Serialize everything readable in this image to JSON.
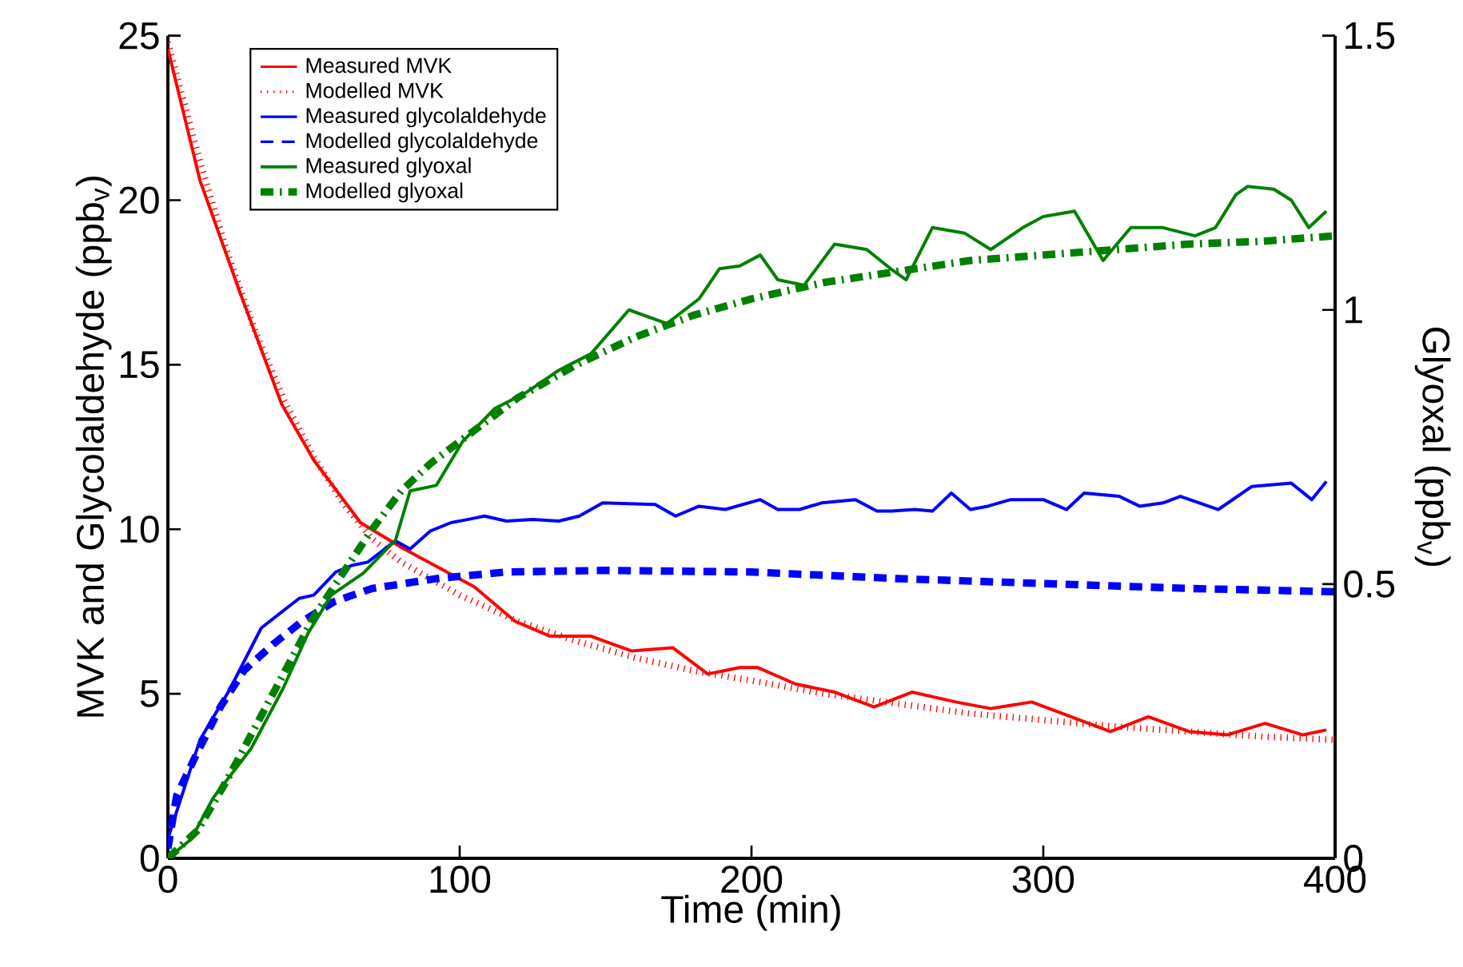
{
  "chart_data": {
    "type": "line",
    "xlabel": "Time (min)",
    "ylabel": "MVK and Glycolaldehyde (ppb$_{v}$)",
    "y2label": "Glyoxal (ppb$_{v}$)",
    "xlim": [
      0,
      400
    ],
    "xticks": [
      0,
      100,
      200,
      300,
      400
    ],
    "ylim": [
      0,
      25
    ],
    "yticks": [
      0,
      5,
      10,
      15,
      20,
      25
    ],
    "y2lim": [
      0,
      1.5
    ],
    "y2ticks": [
      0,
      0.5,
      1,
      1.5
    ],
    "legend": "top left",
    "grid": false,
    "marker": "none",
    "series": [
      {
        "name": "Measured MVK",
        "color": "#ff0000",
        "line_style": "solid",
        "x": [
          0,
          11,
          24.7,
          39,
          50,
          66,
          81,
          105,
          119,
          131,
          145,
          159,
          173,
          185,
          196,
          202,
          215,
          228.5,
          242,
          255,
          270,
          282,
          296,
          323,
          336,
          350,
          363,
          376,
          389,
          397
        ],
        "values": [
          24.6,
          20.6,
          17.2,
          13.8,
          12.1,
          10.2,
          9.4,
          8.25,
          7.2,
          6.75,
          6.75,
          6.3,
          6.4,
          5.6,
          5.8,
          5.8,
          5.3,
          5.05,
          4.6,
          5.05,
          4.75,
          4.55,
          4.75,
          3.85,
          4.3,
          3.85,
          3.75,
          4.1,
          3.75,
          3.9
        ]
      },
      {
        "name": "Modelled MVK",
        "color": "#ff0000",
        "line_style": "dotted",
        "x": [
          0,
          10,
          20,
          30,
          40,
          50,
          60,
          70,
          80,
          100,
          120,
          140,
          160,
          180,
          200,
          225,
          250,
          275,
          300,
          325,
          350,
          375,
          400
        ],
        "values": [
          24.8,
          21.5,
          18.5,
          16,
          13.9,
          12.2,
          10.8,
          9.7,
          9,
          8,
          7.2,
          6.6,
          6.1,
          5.7,
          5.4,
          5,
          4.7,
          4.4,
          4.2,
          4,
          3.85,
          3.7,
          3.6
        ]
      },
      {
        "name": "Measured glycolaldehyde",
        "color": "#0000ff",
        "line_style": "solid",
        "x": [
          0,
          11,
          21,
          32,
          45,
          50,
          57.5,
          63,
          68.5,
          78,
          83,
          90,
          97,
          103,
          108.5,
          116,
          125,
          134,
          141,
          149,
          167,
          174,
          182,
          191,
          203,
          209,
          216.5,
          224,
          235.6,
          243,
          248,
          256,
          262,
          268.5,
          275,
          281,
          288.8,
          300,
          308,
          314,
          326,
          333,
          341,
          347,
          360,
          371.5,
          385,
          392,
          397
        ],
        "values": [
          0.6,
          3.6,
          5.1,
          7,
          7.9,
          8,
          8.7,
          8.9,
          9,
          9.65,
          9.4,
          9.95,
          10.2,
          10.3,
          10.4,
          10.25,
          10.3,
          10.25,
          10.4,
          10.8,
          10.75,
          10.4,
          10.7,
          10.6,
          10.9,
          10.6,
          10.6,
          10.8,
          10.9,
          10.55,
          10.55,
          10.6,
          10.55,
          11.1,
          10.6,
          10.7,
          10.9,
          10.9,
          10.6,
          11.1,
          11,
          10.7,
          10.8,
          11,
          10.6,
          11.3,
          11.4,
          10.9,
          11.45
        ]
      },
      {
        "name": "Modelled glycolaldehyde",
        "color": "#0000ff",
        "line_style": "dashed",
        "x": [
          0,
          3,
          10,
          18,
          26,
          36,
          46,
          57,
          70,
          92,
          116,
          150,
          200,
          250,
          300,
          350,
          400
        ],
        "values": [
          0.3,
          1.9,
          3.2,
          4.6,
          5.7,
          6.5,
          7.2,
          7.8,
          8.2,
          8.5,
          8.7,
          8.75,
          8.7,
          8.5,
          8.35,
          8.2,
          8.1
        ]
      },
      {
        "name": "Measured glyoxal",
        "color": "#008000",
        "line_style": "solid",
        "axis": "y2",
        "x": [
          0,
          8,
          15.5,
          28.5,
          39.5,
          48,
          56,
          67,
          78,
          83,
          92,
          101,
          112,
          123,
          134,
          145,
          158,
          171,
          182,
          189,
          196,
          203,
          209,
          218,
          228.5,
          239.5,
          247.7,
          253,
          262,
          273,
          282,
          293,
          300,
          310.7,
          320.5,
          330,
          341,
          352,
          359,
          366,
          370,
          379,
          385,
          391,
          397
        ],
        "values": [
          0,
          0.035,
          0.11,
          0.2,
          0.31,
          0.41,
          0.48,
          0.52,
          0.58,
          0.67,
          0.68,
          0.76,
          0.82,
          0.85,
          0.89,
          0.92,
          1,
          0.975,
          1.02,
          1.075,
          1.08,
          1.1,
          1.055,
          1.045,
          1.12,
          1.11,
          1.075,
          1.055,
          1.15,
          1.14,
          1.11,
          1.15,
          1.17,
          1.18,
          1.09,
          1.15,
          1.15,
          1.135,
          1.15,
          1.21,
          1.225,
          1.22,
          1.2,
          1.15,
          1.18
        ]
      },
      {
        "name": "Modelled glyoxal",
        "color": "#008000",
        "line_style": "dashdot",
        "axis": "y2",
        "x": [
          0,
          10,
          20,
          30,
          40,
          50,
          60,
          70,
          80,
          90,
          100,
          120,
          140,
          160,
          180,
          200,
          225,
          250,
          275,
          300,
          325,
          350,
          375,
          400
        ],
        "values": [
          0,
          0.05,
          0.14,
          0.24,
          0.34,
          0.44,
          0.52,
          0.6,
          0.67,
          0.72,
          0.76,
          0.84,
          0.9,
          0.95,
          0.99,
          1.02,
          1.05,
          1.07,
          1.09,
          1.1,
          1.11,
          1.12,
          1.125,
          1.135
        ]
      }
    ]
  }
}
